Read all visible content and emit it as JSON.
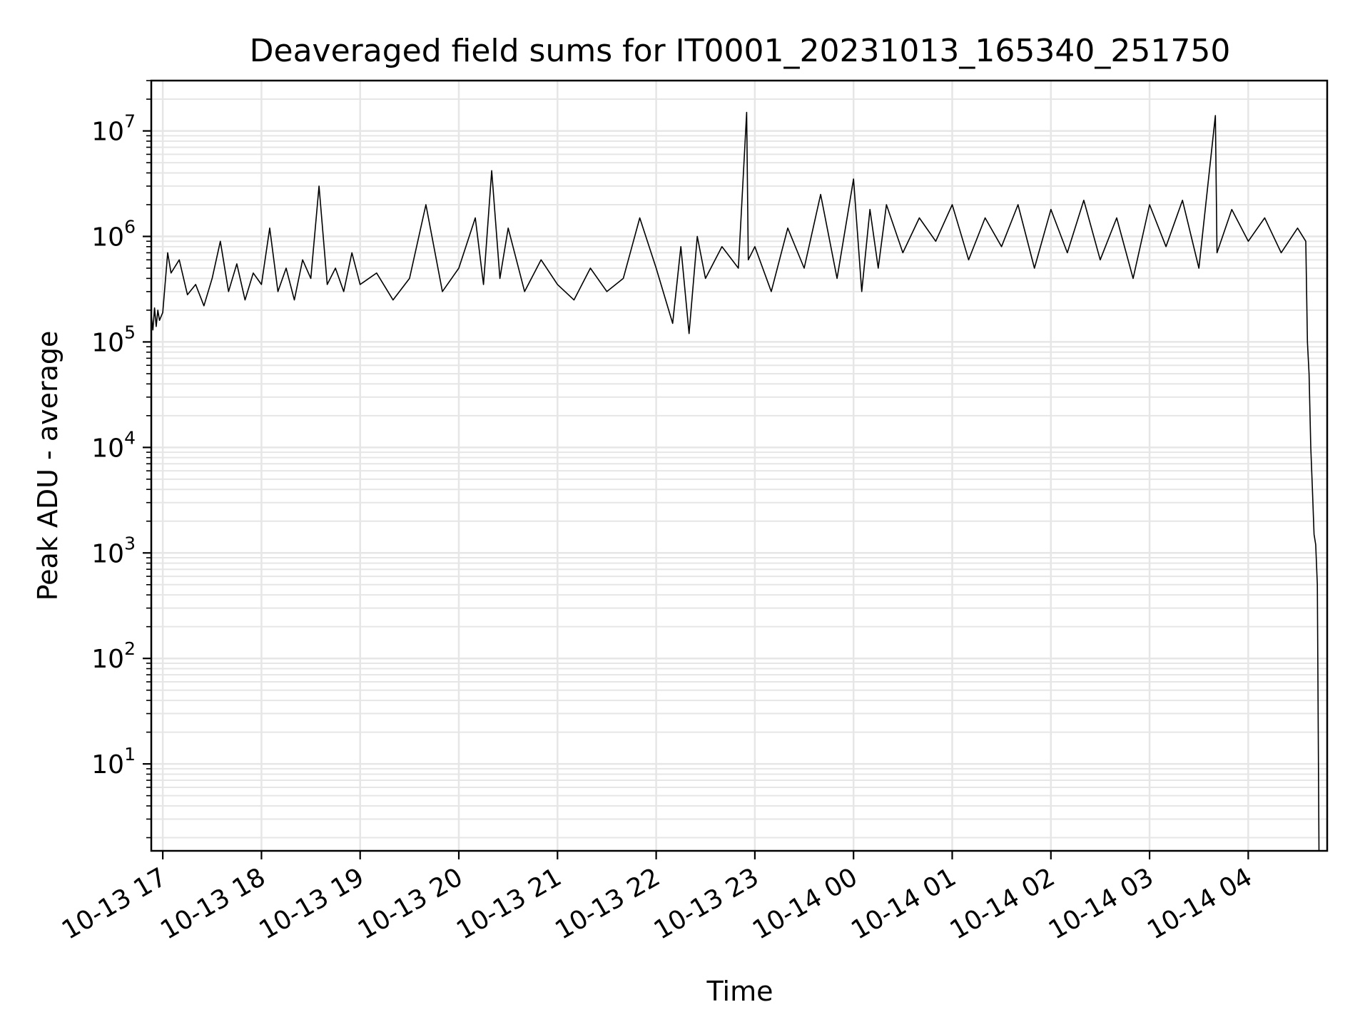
{
  "chart_data": {
    "type": "line",
    "title": "Deaveraged field sums for IT0001_20231013_165340_251750",
    "xlabel": "Time",
    "ylabel": "Peak ADU - average",
    "yscale": "log",
    "ylim": [
      1.5,
      30000000
    ],
    "xlim": [
      "2023-10-13 16:53",
      "2023-10-14 04:48"
    ],
    "grid": true,
    "line_color": "#000000",
    "grid_color": "#e6e6e6",
    "x_ticks": [
      {
        "t": "2023-10-13 17:00",
        "label": "10-13 17"
      },
      {
        "t": "2023-10-13 18:00",
        "label": "10-13 18"
      },
      {
        "t": "2023-10-13 19:00",
        "label": "10-13 19"
      },
      {
        "t": "2023-10-13 20:00",
        "label": "10-13 20"
      },
      {
        "t": "2023-10-13 21:00",
        "label": "10-13 21"
      },
      {
        "t": "2023-10-13 22:00",
        "label": "10-13 22"
      },
      {
        "t": "2023-10-13 23:00",
        "label": "10-13 23"
      },
      {
        "t": "2023-10-14 00:00",
        "label": "10-14 00"
      },
      {
        "t": "2023-10-14 01:00",
        "label": "10-14 01"
      },
      {
        "t": "2023-10-14 02:00",
        "label": "10-14 02"
      },
      {
        "t": "2023-10-14 03:00",
        "label": "10-14 03"
      },
      {
        "t": "2023-10-14 04:00",
        "label": "10-14 04"
      }
    ],
    "y_ticks": [
      {
        "value": 10,
        "base": "10",
        "exp": "1"
      },
      {
        "value": 100,
        "base": "10",
        "exp": "2"
      },
      {
        "value": 1000,
        "base": "10",
        "exp": "3"
      },
      {
        "value": 10000,
        "base": "10",
        "exp": "4"
      },
      {
        "value": 100000,
        "base": "10",
        "exp": "5"
      },
      {
        "value": 1000000,
        "base": "10",
        "exp": "6"
      },
      {
        "value": 10000000,
        "base": "10",
        "exp": "7"
      }
    ],
    "series": [
      {
        "points": [
          [
            "2023-10-13 16:53",
            180000
          ],
          [
            "2023-10-13 16:54",
            130000
          ],
          [
            "2023-10-13 16:55",
            210000
          ],
          [
            "2023-10-13 16:56",
            140000
          ],
          [
            "2023-10-13 16:57",
            200000
          ],
          [
            "2023-10-13 16:58",
            160000
          ],
          [
            "2023-10-13 17:00",
            190000
          ],
          [
            "2023-10-13 17:03",
            700000
          ],
          [
            "2023-10-13 17:05",
            450000
          ],
          [
            "2023-10-13 17:10",
            600000
          ],
          [
            "2023-10-13 17:15",
            280000
          ],
          [
            "2023-10-13 17:20",
            350000
          ],
          [
            "2023-10-13 17:25",
            220000
          ],
          [
            "2023-10-13 17:30",
            400000
          ],
          [
            "2023-10-13 17:35",
            900000
          ],
          [
            "2023-10-13 17:40",
            300000
          ],
          [
            "2023-10-13 17:45",
            550000
          ],
          [
            "2023-10-13 17:50",
            250000
          ],
          [
            "2023-10-13 17:55",
            450000
          ],
          [
            "2023-10-13 18:00",
            350000
          ],
          [
            "2023-10-13 18:05",
            1200000
          ],
          [
            "2023-10-13 18:10",
            300000
          ],
          [
            "2023-10-13 18:15",
            500000
          ],
          [
            "2023-10-13 18:20",
            250000
          ],
          [
            "2023-10-13 18:25",
            600000
          ],
          [
            "2023-10-13 18:30",
            400000
          ],
          [
            "2023-10-13 18:35",
            3000000
          ],
          [
            "2023-10-13 18:40",
            350000
          ],
          [
            "2023-10-13 18:45",
            500000
          ],
          [
            "2023-10-13 18:50",
            300000
          ],
          [
            "2023-10-13 18:55",
            700000
          ],
          [
            "2023-10-13 19:00",
            350000
          ],
          [
            "2023-10-13 19:10",
            450000
          ],
          [
            "2023-10-13 19:20",
            250000
          ],
          [
            "2023-10-13 19:30",
            400000
          ],
          [
            "2023-10-13 19:40",
            2000000
          ],
          [
            "2023-10-13 19:50",
            300000
          ],
          [
            "2023-10-13 20:00",
            500000
          ],
          [
            "2023-10-13 20:10",
            1500000
          ],
          [
            "2023-10-13 20:15",
            350000
          ],
          [
            "2023-10-13 20:20",
            4200000
          ],
          [
            "2023-10-13 20:25",
            400000
          ],
          [
            "2023-10-13 20:30",
            1200000
          ],
          [
            "2023-10-13 20:40",
            300000
          ],
          [
            "2023-10-13 20:50",
            600000
          ],
          [
            "2023-10-13 21:00",
            350000
          ],
          [
            "2023-10-13 21:10",
            250000
          ],
          [
            "2023-10-13 21:20",
            500000
          ],
          [
            "2023-10-13 21:30",
            300000
          ],
          [
            "2023-10-13 21:40",
            400000
          ],
          [
            "2023-10-13 21:50",
            1500000
          ],
          [
            "2023-10-13 22:00",
            500000
          ],
          [
            "2023-10-13 22:10",
            150000
          ],
          [
            "2023-10-13 22:15",
            800000
          ],
          [
            "2023-10-13 22:20",
            120000
          ],
          [
            "2023-10-13 22:25",
            1000000
          ],
          [
            "2023-10-13 22:30",
            400000
          ],
          [
            "2023-10-13 22:40",
            800000
          ],
          [
            "2023-10-13 22:50",
            500000
          ],
          [
            "2023-10-13 22:55",
            15000000
          ],
          [
            "2023-10-13 22:56",
            600000
          ],
          [
            "2023-10-13 23:00",
            800000
          ],
          [
            "2023-10-13 23:10",
            300000
          ],
          [
            "2023-10-13 23:20",
            1200000
          ],
          [
            "2023-10-13 23:30",
            500000
          ],
          [
            "2023-10-13 23:40",
            2500000
          ],
          [
            "2023-10-13 23:50",
            400000
          ],
          [
            "2023-10-14 00:00",
            3500000
          ],
          [
            "2023-10-14 00:05",
            300000
          ],
          [
            "2023-10-14 00:10",
            1800000
          ],
          [
            "2023-10-14 00:15",
            500000
          ],
          [
            "2023-10-14 00:20",
            2000000
          ],
          [
            "2023-10-14 00:30",
            700000
          ],
          [
            "2023-10-14 00:40",
            1500000
          ],
          [
            "2023-10-14 00:50",
            900000
          ],
          [
            "2023-10-14 01:00",
            2000000
          ],
          [
            "2023-10-14 01:10",
            600000
          ],
          [
            "2023-10-14 01:20",
            1500000
          ],
          [
            "2023-10-14 01:30",
            800000
          ],
          [
            "2023-10-14 01:40",
            2000000
          ],
          [
            "2023-10-14 01:50",
            500000
          ],
          [
            "2023-10-14 02:00",
            1800000
          ],
          [
            "2023-10-14 02:10",
            700000
          ],
          [
            "2023-10-14 02:20",
            2200000
          ],
          [
            "2023-10-14 02:30",
            600000
          ],
          [
            "2023-10-14 02:40",
            1500000
          ],
          [
            "2023-10-14 02:50",
            400000
          ],
          [
            "2023-10-14 03:00",
            2000000
          ],
          [
            "2023-10-14 03:10",
            800000
          ],
          [
            "2023-10-14 03:20",
            2200000
          ],
          [
            "2023-10-14 03:30",
            500000
          ],
          [
            "2023-10-14 03:40",
            14000000
          ],
          [
            "2023-10-14 03:41",
            700000
          ],
          [
            "2023-10-14 03:50",
            1800000
          ],
          [
            "2023-10-14 04:00",
            900000
          ],
          [
            "2023-10-14 04:10",
            1500000
          ],
          [
            "2023-10-14 04:20",
            700000
          ],
          [
            "2023-10-14 04:30",
            1200000
          ],
          [
            "2023-10-14 04:35",
            900000
          ],
          [
            "2023-10-14 04:36",
            100000
          ],
          [
            "2023-10-14 04:37",
            50000
          ],
          [
            "2023-10-14 04:38",
            10000
          ],
          [
            "2023-10-14 04:39",
            4000
          ],
          [
            "2023-10-14 04:40",
            1500
          ],
          [
            "2023-10-14 04:41",
            1200
          ],
          [
            "2023-10-14 04:42",
            500
          ],
          [
            "2023-10-14 04:43",
            1.5
          ]
        ]
      }
    ]
  }
}
